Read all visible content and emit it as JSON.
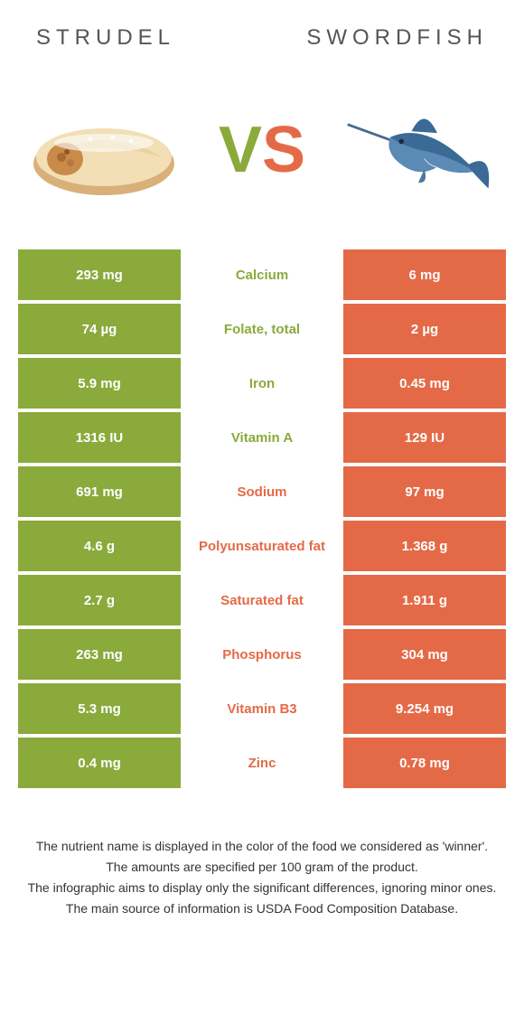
{
  "header": {
    "left_title": "Strudel",
    "right_title": "Swordfish"
  },
  "vs": {
    "v": "V",
    "s": "S"
  },
  "colors": {
    "green": "#8aaa3b",
    "orange": "#e46a47",
    "text": "#333333",
    "bg": "#ffffff"
  },
  "rows": [
    {
      "left": "293 mg",
      "label": "Calcium",
      "winner": "green",
      "right": "6 mg"
    },
    {
      "left": "74 µg",
      "label": "Folate, total",
      "winner": "green",
      "right": "2 µg"
    },
    {
      "left": "5.9 mg",
      "label": "Iron",
      "winner": "green",
      "right": "0.45 mg"
    },
    {
      "left": "1316 IU",
      "label": "Vitamin A",
      "winner": "green",
      "right": "129 IU"
    },
    {
      "left": "691 mg",
      "label": "Sodium",
      "winner": "orange",
      "right": "97 mg"
    },
    {
      "left": "4.6 g",
      "label": "Polyunsaturated fat",
      "winner": "orange",
      "right": "1.368 g"
    },
    {
      "left": "2.7 g",
      "label": "Saturated fat",
      "winner": "orange",
      "right": "1.911 g"
    },
    {
      "left": "263 mg",
      "label": "Phosphorus",
      "winner": "orange",
      "right": "304 mg"
    },
    {
      "left": "5.3 mg",
      "label": "Vitamin B3",
      "winner": "orange",
      "right": "9.254 mg"
    },
    {
      "left": "0.4 mg",
      "label": "Zinc",
      "winner": "orange",
      "right": "0.78 mg"
    }
  ],
  "footnotes": [
    "The nutrient name is displayed in the color of the food we considered as 'winner'.",
    "The amounts are specified per 100 gram of the product.",
    "The infographic aims to display only the significant differences, ignoring minor ones.",
    "The main source of information is USDA Food Composition Database."
  ]
}
